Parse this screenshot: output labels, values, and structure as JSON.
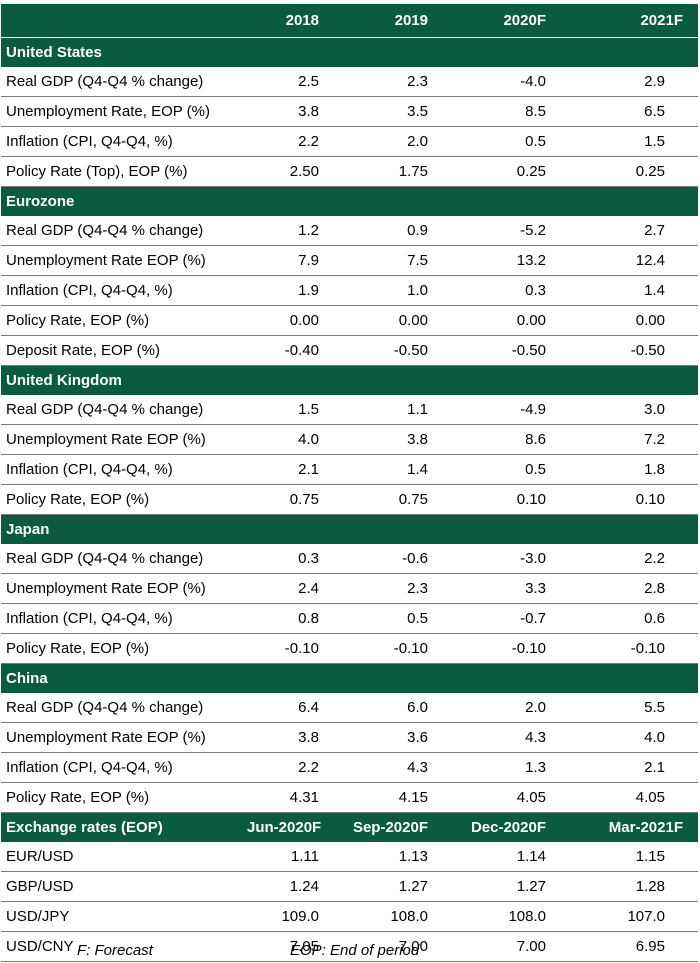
{
  "header": {
    "label": "",
    "columns": [
      "2018",
      "2019",
      "2020F",
      "2021F"
    ]
  },
  "sections": [
    {
      "title": "United States",
      "rows": [
        {
          "label": "Real GDP (Q4-Q4 % change)",
          "values": [
            "2.5",
            "2.3",
            "-4.0",
            "2.9"
          ]
        },
        {
          "label": "Unemployment Rate, EOP (%)",
          "values": [
            "3.8",
            "3.5",
            "8.5",
            "6.5"
          ]
        },
        {
          "label": "Inflation (CPI, Q4-Q4, %)",
          "values": [
            "2.2",
            "2.0",
            "0.5",
            "1.5"
          ]
        },
        {
          "label": "Policy Rate (Top), EOP (%)",
          "values": [
            "2.50",
            "1.75",
            "0.25",
            "0.25"
          ]
        }
      ]
    },
    {
      "title": "Eurozone",
      "rows": [
        {
          "label": "Real GDP (Q4-Q4 % change)",
          "values": [
            "1.2",
            "0.9",
            "-5.2",
            "2.7"
          ]
        },
        {
          "label": "Unemployment Rate EOP (%)",
          "values": [
            "7.9",
            "7.5",
            "13.2",
            "12.4"
          ]
        },
        {
          "label": "Inflation (CPI, Q4-Q4, %)",
          "values": [
            "1.9",
            "1.0",
            "0.3",
            "1.4"
          ]
        },
        {
          "label": "Policy Rate, EOP (%)",
          "values": [
            "0.00",
            "0.00",
            "0.00",
            "0.00"
          ]
        },
        {
          "label": "Deposit Rate, EOP (%)",
          "values": [
            "-0.40",
            "-0.50",
            "-0.50",
            "-0.50"
          ]
        }
      ]
    },
    {
      "title": "United Kingdom",
      "rows": [
        {
          "label": "Real GDP (Q4-Q4 % change)",
          "values": [
            "1.5",
            "1.1",
            "-4.9",
            "3.0"
          ]
        },
        {
          "label": "Unemployment Rate EOP (%)",
          "values": [
            "4.0",
            "3.8",
            "8.6",
            "7.2"
          ]
        },
        {
          "label": "Inflation (CPI, Q4-Q4, %)",
          "values": [
            "2.1",
            "1.4",
            "0.5",
            "1.8"
          ]
        },
        {
          "label": "Policy Rate, EOP (%)",
          "values": [
            "0.75",
            "0.75",
            "0.10",
            "0.10"
          ]
        }
      ]
    },
    {
      "title": "Japan",
      "rows": [
        {
          "label": "Real GDP (Q4-Q4 % change)",
          "values": [
            "0.3",
            "-0.6",
            "-3.0",
            "2.2"
          ]
        },
        {
          "label": "Unemployment Rate EOP (%)",
          "values": [
            "2.4",
            "2.3",
            "3.3",
            "2.8"
          ]
        },
        {
          "label": "Inflation (CPI, Q4-Q4, %)",
          "values": [
            "0.8",
            "0.5",
            "-0.7",
            "0.6"
          ]
        },
        {
          "label": "Policy Rate, EOP (%)",
          "values": [
            "-0.10",
            "-0.10",
            "-0.10",
            "-0.10"
          ]
        }
      ]
    },
    {
      "title": "China",
      "rows": [
        {
          "label": "Real GDP (Q4-Q4 % change)",
          "values": [
            "6.4",
            "6.0",
            "2.0",
            "5.5"
          ]
        },
        {
          "label": "Unemployment Rate EOP (%)",
          "values": [
            "3.8",
            "3.6",
            "4.3",
            "4.0"
          ]
        },
        {
          "label": "Inflation (CPI, Q4-Q4, %)",
          "values": [
            "2.2",
            "4.3",
            "1.3",
            "2.1"
          ]
        },
        {
          "label": "Policy Rate, EOP (%)",
          "values": [
            "4.31",
            "4.15",
            "4.05",
            "4.05"
          ]
        }
      ]
    }
  ],
  "exchange": {
    "title": "Exchange rates (EOP)",
    "columns": [
      "Jun-2020F",
      "Sep-2020F",
      "Dec-2020F",
      "Mar-2021F"
    ],
    "rows": [
      {
        "label": "EUR/USD",
        "values": [
          "1.11",
          "1.13",
          "1.14",
          "1.15"
        ]
      },
      {
        "label": "GBP/USD",
        "values": [
          "1.24",
          "1.27",
          "1.27",
          "1.28"
        ]
      },
      {
        "label": "USD/JPY",
        "values": [
          "109.0",
          "108.0",
          "108.0",
          "107.0"
        ]
      },
      {
        "label": "USD/CNY",
        "values": [
          "7.05",
          "7.00",
          "7.00",
          "6.95"
        ]
      }
    ]
  },
  "footnotes": {
    "forecast": "F: Forecast",
    "eop": "EOP: End of period"
  },
  "colors": {
    "header_bg": "#0b5b3f",
    "header_text": "#ffffff",
    "row_rule": "#7a7a7a"
  }
}
